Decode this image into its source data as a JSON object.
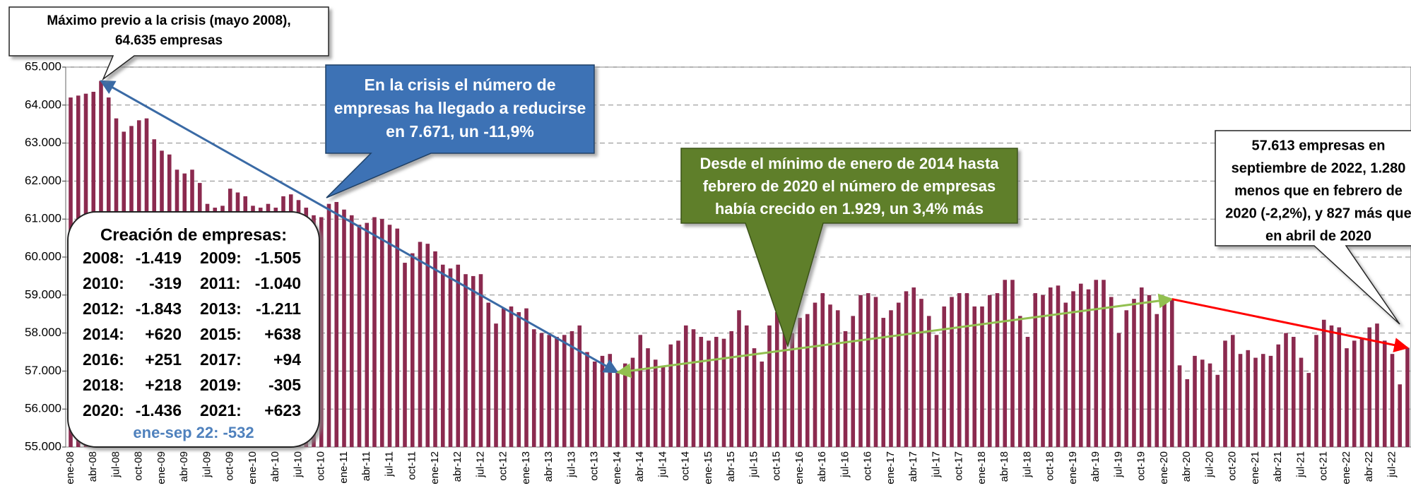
{
  "chart_data": {
    "type": "bar",
    "categories": [
      "ene-08",
      null,
      null,
      "abr-08",
      null,
      null,
      "jul-08",
      null,
      null,
      "oct-08",
      null,
      null,
      "ene-09",
      null,
      null,
      "abr-09",
      null,
      null,
      "jul-09",
      null,
      null,
      "oct-09",
      null,
      null,
      "ene-10",
      null,
      null,
      "abr-10",
      null,
      null,
      "jul-10",
      null,
      null,
      "oct-10",
      null,
      null,
      "ene-11",
      null,
      null,
      "abr-11",
      null,
      null,
      "jul-11",
      null,
      null,
      "oct-11",
      null,
      null,
      "ene-12",
      null,
      null,
      "abr-12",
      null,
      null,
      "jul-12",
      null,
      null,
      "oct-12",
      null,
      null,
      "ene-13",
      null,
      null,
      "abr-13",
      null,
      null,
      "jul-13",
      null,
      null,
      "oct-13",
      null,
      null,
      "ene-14",
      null,
      null,
      "abr-14",
      null,
      null,
      "jul-14",
      null,
      null,
      "oct-14",
      null,
      null,
      "ene-15",
      null,
      null,
      "abr-15",
      null,
      null,
      "jul-15",
      null,
      null,
      "oct-15",
      null,
      null,
      "ene-16",
      null,
      null,
      "abr-16",
      null,
      null,
      "jul-16",
      null,
      null,
      "oct-16",
      null,
      null,
      "ene-17",
      null,
      null,
      "abr-17",
      null,
      null,
      "jul-17",
      null,
      null,
      "oct-17",
      null,
      null,
      "ene-18",
      null,
      null,
      "abr-18",
      null,
      null,
      "jul-18",
      null,
      null,
      "oct-18",
      null,
      null,
      "ene-19",
      null,
      null,
      "abr-19",
      null,
      null,
      "jul-19",
      null,
      null,
      "oct-19",
      null,
      null,
      "ene-20",
      null,
      null,
      "abr-20",
      null,
      null,
      "jul-20",
      null,
      null,
      "oct-20",
      null,
      null,
      "ene-21",
      null,
      null,
      "abr-21",
      null,
      null,
      "jul-21",
      null,
      null,
      "oct-21",
      null,
      null,
      "ene-22",
      null,
      null,
      "abr-22",
      null,
      null,
      "jul-22",
      null,
      null
    ],
    "values": [
      64200,
      64250,
      64300,
      64350,
      64635,
      64200,
      63650,
      63300,
      63450,
      63600,
      63650,
      63100,
      62800,
      62700,
      62300,
      62200,
      62300,
      61950,
      61400,
      61300,
      61350,
      61800,
      61700,
      61600,
      61350,
      61300,
      61400,
      61300,
      61600,
      61650,
      61500,
      61300,
      61100,
      61050,
      61400,
      61450,
      61250,
      61100,
      60850,
      60900,
      61050,
      61000,
      60850,
      60750,
      59850,
      60100,
      60400,
      60350,
      60150,
      59800,
      59700,
      59800,
      59550,
      59500,
      59550,
      58800,
      58250,
      58650,
      58700,
      58550,
      58650,
      58100,
      58000,
      57950,
      57900,
      57950,
      58050,
      58200,
      57500,
      57250,
      57400,
      57450,
      56964,
      57200,
      57350,
      57950,
      57600,
      57300,
      57100,
      57700,
      57800,
      58200,
      58100,
      57900,
      57800,
      57900,
      57850,
      58050,
      58600,
      58200,
      57600,
      57250,
      58200,
      58550,
      58350,
      58000,
      58400,
      58500,
      58800,
      59050,
      58750,
      58600,
      58050,
      58450,
      59000,
      59050,
      58950,
      58400,
      58600,
      58800,
      59100,
      59200,
      58900,
      58450,
      57950,
      58700,
      58950,
      59050,
      59050,
      58700,
      58700,
      59000,
      59050,
      59400,
      59400,
      58450,
      57900,
      59050,
      59000,
      59200,
      59250,
      58800,
      59100,
      59300,
      59150,
      59400,
      59400,
      58950,
      58000,
      58600,
      58900,
      59200,
      59000,
      58500,
      58800,
      58893,
      57150,
      56786,
      57400,
      57300,
      57200,
      56900,
      57800,
      57950,
      57450,
      57550,
      57350,
      57450,
      57400,
      57700,
      58000,
      57900,
      57350,
      56950,
      57950,
      58350,
      58200,
      58150,
      57600,
      57800,
      57850,
      58150,
      58250,
      57800,
      57450,
      56650,
      57613
    ],
    "color": "#8b2a4f",
    "ylim": [
      55000,
      65000
    ],
    "yticks": [
      {
        "value": 55000,
        "label": "55.000"
      },
      {
        "value": 56000,
        "label": "56.000"
      },
      {
        "value": 57000,
        "label": "57.000"
      },
      {
        "value": 58000,
        "label": "58.000"
      },
      {
        "value": 59000,
        "label": "59.000"
      },
      {
        "value": 60000,
        "label": "60.000"
      },
      {
        "value": 61000,
        "label": "61.000"
      },
      {
        "value": 62000,
        "label": "62.000"
      },
      {
        "value": 63000,
        "label": "63.000"
      },
      {
        "value": 64000,
        "label": "64.000"
      },
      {
        "value": 65000,
        "label": "65.000"
      }
    ],
    "grid": true,
    "annotations": {
      "peak": [
        "Máximo previo a la crisis (mayo 2008),",
        "64.635 empresas"
      ],
      "crisis": [
        "En la crisis el número de",
        "empresas ha llegado a reducirse",
        "en 7.671, un -11,9%"
      ],
      "recovery": [
        "Desde el mínimo de enero de 2014 hasta",
        "febrero de 2020 el número de empresas",
        "había crecido en 1.929, un 3,4% más"
      ],
      "latest": [
        "57.613 empresas en",
        "septiembre de 2022, 1.280",
        "menos que en febrero de",
        "2020 (-2,2%), y 827 más que",
        "en abril de 2020"
      ]
    },
    "summary": {
      "title": "Creación de empresas:",
      "rows": [
        [
          "2008:",
          "-1.419",
          "2009:",
          "-1.505"
        ],
        [
          "2010:",
          "-319",
          "2011:",
          "-1.040"
        ],
        [
          "2012:",
          "-1.843",
          "2013:",
          "-1.211"
        ],
        [
          "2014:",
          "+620",
          "2015:",
          "+638"
        ],
        [
          "2016:",
          "+251",
          "2017:",
          "+94"
        ],
        [
          "2018:",
          "+218",
          "2019:",
          "-305"
        ],
        [
          "2020:",
          "-1.436",
          "2021:",
          "+623"
        ]
      ],
      "footer": "ene-sep 22: -532"
    }
  }
}
